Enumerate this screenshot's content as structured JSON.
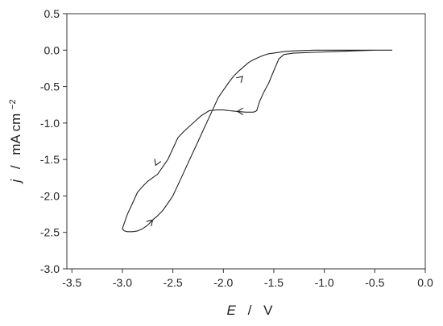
{
  "chart_data": {
    "type": "line",
    "title": "",
    "xlabel": {
      "symbol": "E",
      "sep": "/",
      "unit": "V"
    },
    "ylabel": {
      "symbol": "j",
      "sep": "/",
      "unit": "mA cm",
      "unit_sup": "−2"
    },
    "xlim": [
      -3.55,
      0.0
    ],
    "ylim": [
      -3.0,
      0.5
    ],
    "xticks": [
      -3.5,
      -3.0,
      -2.5,
      -2.0,
      -1.5,
      -1.0,
      -0.5,
      0.0
    ],
    "xtick_labels": [
      "-3.5",
      "-3.0",
      "-2.5",
      "-2.0",
      "-1.5",
      "-1.0",
      "-0.5",
      "0.0"
    ],
    "yticks": [
      0.5,
      0.0,
      -0.5,
      -1.0,
      -1.5,
      -2.0,
      -2.5,
      -3.0
    ],
    "ytick_labels": [
      "0.5",
      "0.0",
      "-0.5",
      "-1.0",
      "-1.5",
      "-2.0",
      "-2.5",
      "-3.0"
    ],
    "grid": false,
    "legend": "none",
    "line_color": "#222222",
    "series": [
      {
        "x": [
          -0.33,
          -0.5,
          -0.7,
          -0.9,
          -1.1,
          -1.3,
          -1.4,
          -1.45,
          -1.5,
          -1.55,
          -1.6,
          -1.64,
          -1.67,
          -1.7,
          -1.78,
          -1.86,
          -1.94,
          -2.0,
          -2.06,
          -2.14,
          -2.22,
          -2.3,
          -2.38,
          -2.45,
          -2.5,
          -2.55,
          -2.6,
          -2.65,
          -2.7,
          -2.75,
          -2.8,
          -2.85,
          -2.9,
          -2.95,
          -3.0,
          -2.98,
          -2.95,
          -2.9,
          -2.85,
          -2.8,
          -2.75,
          -2.7,
          -2.65,
          -2.6,
          -2.55,
          -2.5,
          -2.45,
          -2.4,
          -2.35,
          -2.3,
          -2.25,
          -2.2,
          -2.15,
          -2.1,
          -2.05,
          -2.0,
          -1.95,
          -1.9,
          -1.85,
          -1.8,
          -1.75,
          -1.7,
          -1.65,
          -1.6,
          -1.55,
          -1.5,
          -1.4,
          -1.3,
          -1.1,
          -0.9,
          -0.75,
          -0.6,
          -0.45,
          -0.33
        ],
        "y": [
          0.0,
          0.0,
          -0.01,
          -0.02,
          -0.03,
          -0.04,
          -0.06,
          -0.12,
          -0.28,
          -0.45,
          -0.58,
          -0.7,
          -0.83,
          -0.85,
          -0.85,
          -0.84,
          -0.83,
          -0.82,
          -0.82,
          -0.83,
          -0.9,
          -1.0,
          -1.1,
          -1.2,
          -1.35,
          -1.5,
          -1.6,
          -1.7,
          -1.75,
          -1.8,
          -1.87,
          -1.95,
          -2.1,
          -2.25,
          -2.45,
          -2.48,
          -2.49,
          -2.49,
          -2.48,
          -2.45,
          -2.4,
          -2.33,
          -2.27,
          -2.2,
          -2.1,
          -2.0,
          -1.85,
          -1.7,
          -1.55,
          -1.4,
          -1.25,
          -1.1,
          -0.95,
          -0.8,
          -0.65,
          -0.55,
          -0.45,
          -0.36,
          -0.29,
          -0.23,
          -0.17,
          -0.13,
          -0.1,
          -0.07,
          -0.05,
          -0.04,
          -0.02,
          -0.01,
          0.0,
          0.0,
          0.0,
          0.0,
          0.0,
          0.0
        ]
      }
    ],
    "arrows": [
      {
        "x": -1.86,
        "y": -0.84,
        "dx": -1,
        "dy": 0
      },
      {
        "x": -2.67,
        "y": -1.58,
        "dx": -0.4,
        "dy": -1
      },
      {
        "x": -2.7,
        "y": -2.33,
        "dx": 1,
        "dy": 1
      },
      {
        "x": -1.81,
        "y": -0.36,
        "dx": 1,
        "dy": 1
      }
    ]
  }
}
